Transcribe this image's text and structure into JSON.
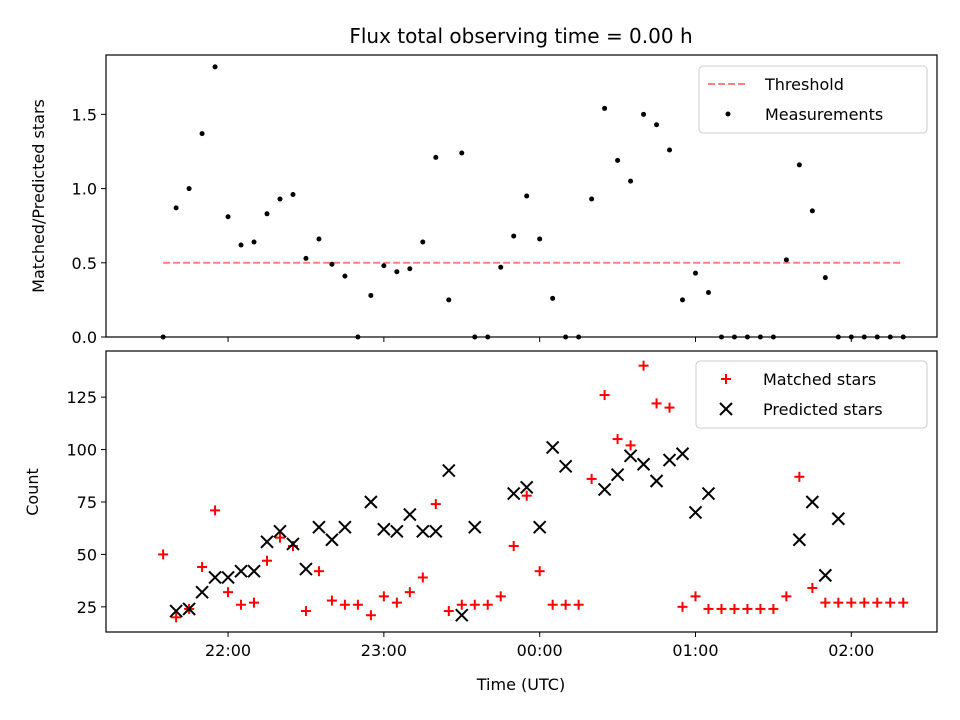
{
  "chart_data": [
    {
      "type": "scatter",
      "title": "Flux total observing time = 0.00 h",
      "xlabel": "",
      "ylabel": "Matched/Predicted stars",
      "ylim": [
        0,
        1.9
      ],
      "yticks": [
        "0.0",
        "0.5",
        "1.0",
        "1.5"
      ],
      "grid": false,
      "legend": "upper-right",
      "threshold": {
        "name": "Threshold",
        "value": 0.5,
        "color": "#ff7f7f",
        "x_start": "21:35",
        "x_end": "02:20"
      },
      "series": [
        {
          "name": "Measurements",
          "color": "#000000",
          "marker": "dot",
          "x": [
            "21:35",
            "21:40",
            "21:45",
            "21:50",
            "21:55",
            "22:00",
            "22:05",
            "22:10",
            "22:15",
            "22:20",
            "22:25",
            "22:30",
            "22:35",
            "22:40",
            "22:45",
            "22:50",
            "22:55",
            "23:00",
            "23:05",
            "23:10",
            "23:15",
            "23:20",
            "23:25",
            "23:30",
            "23:35",
            "23:40",
            "23:45",
            "23:50",
            "23:55",
            "00:00",
            "00:05",
            "00:10",
            "00:15",
            "00:20",
            "00:25",
            "00:30",
            "00:35",
            "00:40",
            "00:45",
            "00:50",
            "00:55",
            "01:00",
            "01:05",
            "01:10",
            "01:15",
            "01:20",
            "01:25",
            "01:30",
            "01:35",
            "01:40",
            "01:45",
            "01:50",
            "01:55",
            "02:00",
            "02:05",
            "02:10",
            "02:15",
            "02:20"
          ],
          "y": [
            0.0,
            0.87,
            1.0,
            1.37,
            1.82,
            0.81,
            0.62,
            0.64,
            0.83,
            0.93,
            0.96,
            0.53,
            0.66,
            0.49,
            0.41,
            0.0,
            0.28,
            0.48,
            0.44,
            0.46,
            0.64,
            1.21,
            0.25,
            1.24,
            0.0,
            0.0,
            0.47,
            0.68,
            0.95,
            0.66,
            0.26,
            0.0,
            0.0,
            0.93,
            1.54,
            1.19,
            1.05,
            1.5,
            1.43,
            1.26,
            0.25,
            0.43,
            0.3,
            0.0,
            0.0,
            0.0,
            0.0,
            0.0,
            0.52,
            1.16,
            0.85,
            0.4,
            0.0,
            0.0,
            0.0,
            0.0,
            0.0,
            0.0
          ]
        }
      ]
    },
    {
      "type": "scatter",
      "title": "",
      "xlabel": "Time (UTC)",
      "ylabel": "Count",
      "ylim": [
        13,
        147
      ],
      "yticks": [
        "25",
        "50",
        "75",
        "100",
        "125"
      ],
      "xticks": [
        "22:00",
        "23:00",
        "00:00",
        "01:00",
        "02:00"
      ],
      "xlim": [
        "21:13",
        "02:33"
      ],
      "grid": false,
      "legend": "upper-right",
      "series": [
        {
          "name": "Matched stars",
          "color": "#ff0000",
          "marker": "plus",
          "x": [
            "21:35",
            "21:40",
            "21:45",
            "21:50",
            "21:55",
            "22:00",
            "22:05",
            "22:10",
            "22:15",
            "22:20",
            "22:25",
            "22:30",
            "22:35",
            "22:40",
            "22:45",
            "22:50",
            "22:55",
            "23:00",
            "23:05",
            "23:10",
            "23:15",
            "23:20",
            "23:25",
            "23:30",
            "23:35",
            "23:40",
            "23:45",
            "23:50",
            "23:55",
            "00:00",
            "00:05",
            "00:10",
            "00:15",
            "00:20",
            "00:25",
            "00:30",
            "00:35",
            "00:40",
            "00:45",
            "00:50",
            "00:55",
            "01:00",
            "01:05",
            "01:10",
            "01:15",
            "01:20",
            "01:25",
            "01:30",
            "01:35",
            "01:40",
            "01:45",
            "01:50",
            "01:55",
            "02:00",
            "02:05",
            "02:10",
            "02:15",
            "02:20"
          ],
          "y": [
            50,
            20,
            24,
            44,
            71,
            32,
            26,
            27,
            47,
            58,
            54,
            23,
            42,
            28,
            26,
            26,
            21,
            30,
            27,
            32,
            39,
            74,
            23,
            26,
            26,
            26,
            30,
            54,
            78,
            42,
            26,
            26,
            26,
            86,
            126,
            105,
            102,
            140,
            122,
            120,
            25,
            30,
            24,
            24,
            24,
            24,
            24,
            24,
            30,
            87,
            34,
            27,
            27,
            27,
            27,
            27,
            27,
            27
          ]
        },
        {
          "name": "Predicted stars",
          "color": "#000000",
          "marker": "x",
          "x": [
            "21:40",
            "21:45",
            "21:50",
            "21:55",
            "22:00",
            "22:05",
            "22:10",
            "22:15",
            "22:20",
            "22:25",
            "22:30",
            "22:35",
            "22:40",
            "22:45",
            "22:55",
            "23:00",
            "23:05",
            "23:10",
            "23:15",
            "23:20",
            "23:25",
            "23:30",
            "23:35",
            "23:50",
            "23:55",
            "00:00",
            "00:05",
            "00:10",
            "00:25",
            "00:30",
            "00:35",
            "00:40",
            "00:45",
            "00:50",
            "00:55",
            "01:00",
            "01:05",
            "01:40",
            "01:45",
            "01:50",
            "01:55"
          ],
          "y": [
            23,
            24,
            32,
            39,
            39,
            42,
            42,
            56,
            61,
            55,
            43,
            63,
            57,
            63,
            75,
            62,
            61,
            69,
            61,
            61,
            90,
            21,
            63,
            79,
            82,
            63,
            101,
            92,
            81,
            88,
            97,
            93,
            85,
            95,
            98,
            70,
            79,
            57,
            75,
            40,
            67
          ]
        }
      ]
    }
  ]
}
